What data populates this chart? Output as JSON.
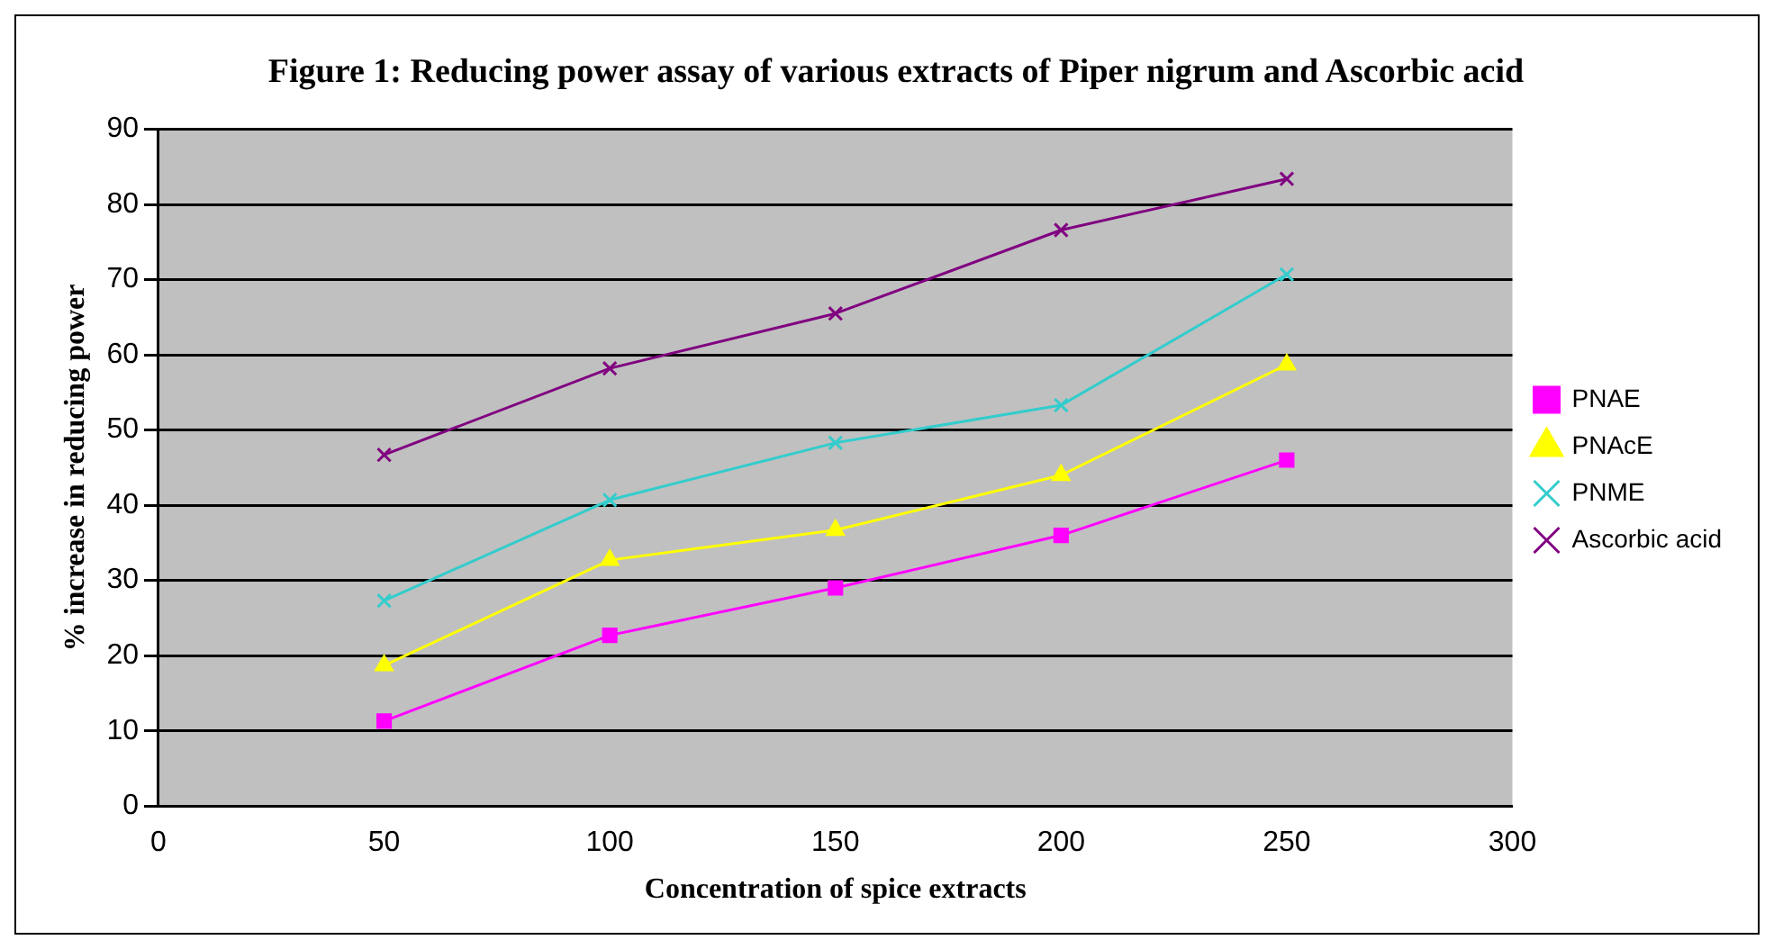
{
  "chart_data": {
    "type": "line",
    "title": "Figure 1: Reducing power assay of various extracts of Piper nigrum and Ascorbic acid",
    "xlabel": "Concentration of spice extracts",
    "ylabel": "% increase in reducing power",
    "x": [
      50,
      100,
      150,
      200,
      250
    ],
    "xlim": [
      0,
      300
    ],
    "xticks": [
      0,
      50,
      100,
      150,
      200,
      250,
      300
    ],
    "ylim": [
      0,
      90
    ],
    "yticks": [
      0,
      10,
      20,
      30,
      40,
      50,
      60,
      70,
      80,
      90
    ],
    "grid": "y",
    "legend": "right",
    "series": [
      {
        "name": "PNAE",
        "color": "#ff00ff",
        "marker": "square",
        "values": [
          11.3,
          22.7,
          29,
          36,
          46
        ]
      },
      {
        "name": "PNAcE",
        "color": "#ffff00",
        "marker": "triangle",
        "values": [
          18.7,
          32.7,
          36.7,
          44,
          58.7
        ]
      },
      {
        "name": "PNME",
        "color": "#33cccc",
        "marker": "cross",
        "values": [
          27.3,
          40.7,
          48.3,
          53.3,
          70.7
        ]
      },
      {
        "name": "Ascorbic acid",
        "color": "#800080",
        "marker": "cross",
        "values": [
          46.7,
          58.2,
          65.5,
          76.6,
          83.4
        ]
      }
    ]
  }
}
